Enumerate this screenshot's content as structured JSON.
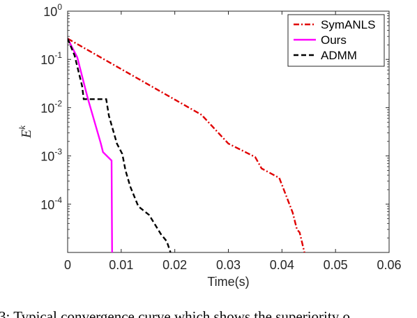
{
  "caption": "3: Typical convergence curve which shows the superiority o",
  "chart_data": {
    "type": "line",
    "title": "",
    "xlabel": "Time(s)",
    "ylabel": {
      "base": "E",
      "superscript": "k"
    },
    "xlim": [
      0,
      0.06
    ],
    "ylim": [
      1e-05,
      1
    ],
    "yscale": "log",
    "grid": false,
    "legend_position": "top-right",
    "x_ticks": [
      "0",
      "0.01",
      "0.02",
      "0.03",
      "0.04",
      "0.05",
      "0.06"
    ],
    "y_ticks": [
      {
        "base": "10",
        "exp": "0",
        "value": 1
      },
      {
        "base": "10",
        "exp": "-1",
        "value": 0.1
      },
      {
        "base": "10",
        "exp": "-2",
        "value": 0.01
      },
      {
        "base": "10",
        "exp": "-3",
        "value": 0.001
      },
      {
        "base": "10",
        "exp": "-4",
        "value": 0.0001
      }
    ],
    "series": [
      {
        "name": "SymANLS",
        "color": "#e00000",
        "dash": "dashdot",
        "points": [
          [
            0,
            0.27
          ],
          [
            0.025,
            0.0071
          ],
          [
            0.03,
            0.0018
          ],
          [
            0.035,
            0.00095
          ],
          [
            0.0362,
            0.00055
          ],
          [
            0.0395,
            0.00035
          ],
          [
            0.041,
            0.00013
          ],
          [
            0.042,
            6.7e-05
          ],
          [
            0.0428,
            3e-05
          ],
          [
            0.0433,
            2.6e-05
          ],
          [
            0.0442,
            1e-05
          ]
        ]
      },
      {
        "name": "Ours",
        "color": "#ff00ff",
        "dash": "solid",
        "points": [
          [
            0,
            0.27
          ],
          [
            0.0018,
            0.11
          ],
          [
            0.0038,
            0.015
          ],
          [
            0.0062,
            0.0018
          ],
          [
            0.0066,
            0.0012
          ],
          [
            0.0082,
            0.0008
          ],
          [
            0.0083,
            1e-05
          ]
        ]
      },
      {
        "name": "ADMM",
        "color": "#000000",
        "dash": "dashed",
        "points": [
          [
            0,
            0.27
          ],
          [
            0.0013,
            0.12
          ],
          [
            0.0027,
            0.028
          ],
          [
            0.003,
            0.015
          ],
          [
            0.0072,
            0.015
          ],
          [
            0.0077,
            0.0068
          ],
          [
            0.0092,
            0.0018
          ],
          [
            0.0102,
            0.0011
          ],
          [
            0.0108,
            0.0005
          ],
          [
            0.0117,
            0.00023
          ],
          [
            0.0132,
            9e-05
          ],
          [
            0.0152,
            6e-05
          ],
          [
            0.0174,
            2.4e-05
          ],
          [
            0.0185,
            1.7e-05
          ],
          [
            0.0192,
            1e-05
          ]
        ]
      }
    ]
  }
}
